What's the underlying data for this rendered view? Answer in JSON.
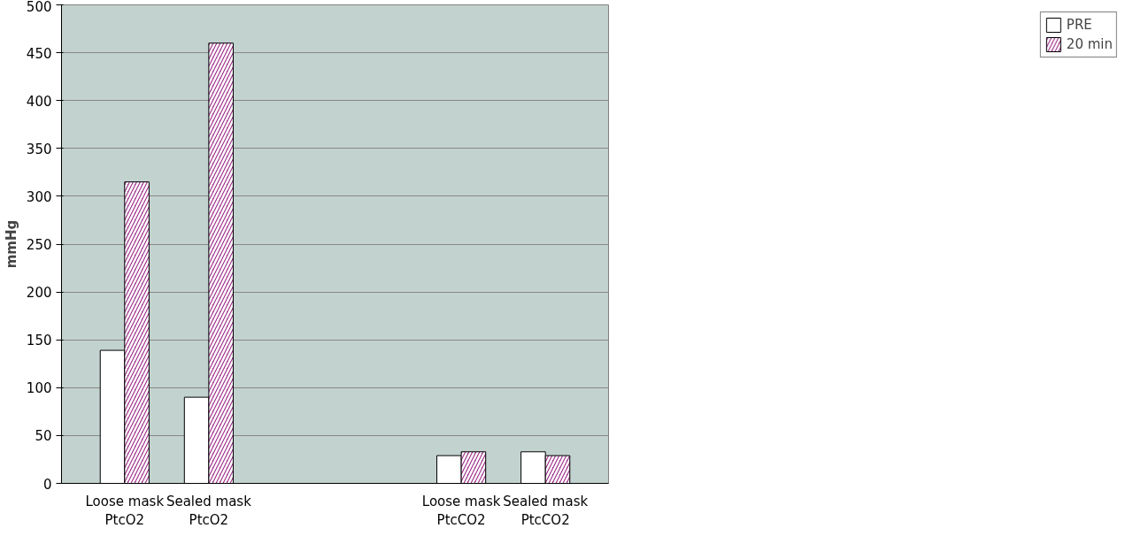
{
  "chart_data": {
    "type": "bar",
    "ylabel": "mmHg",
    "categories": [
      "Loose mask\nPtcO2",
      "Sealed mask\nPtcO2",
      null,
      null,
      "Loose mask\nPtcCO2",
      "Sealed mask\nPtcCO2"
    ],
    "series": [
      {
        "name": "PRE",
        "color": "#ffffff",
        "values": [
          139,
          90,
          null,
          null,
          29,
          33
        ]
      },
      {
        "name": "20 min",
        "color": "#9c2a87",
        "values": [
          315,
          460,
          null,
          null,
          33,
          29
        ]
      }
    ],
    "ylim": [
      0,
      500
    ],
    "yticks": [
      0,
      50,
      100,
      150,
      200,
      250,
      300,
      350,
      400,
      450,
      500
    ],
    "grid": "y",
    "legend": "right"
  }
}
